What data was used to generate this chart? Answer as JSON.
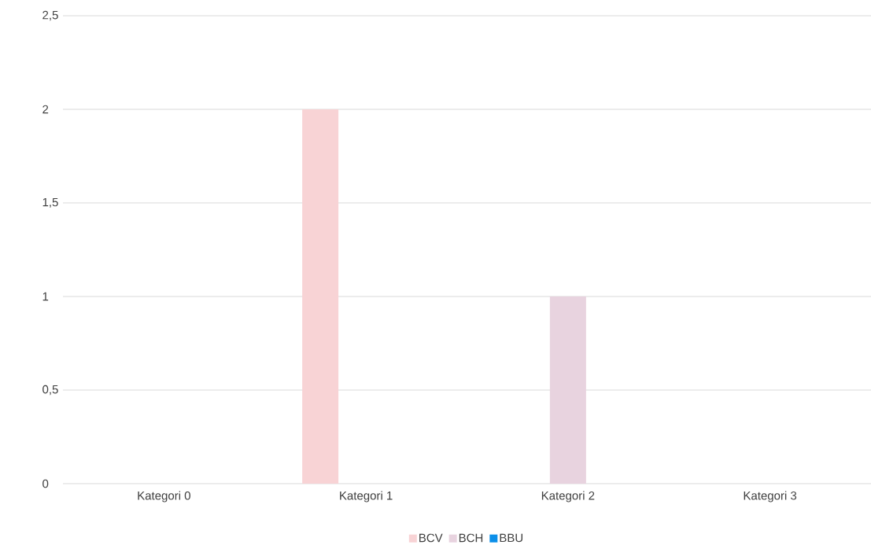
{
  "chart_data": {
    "type": "bar",
    "categories": [
      "Kategori 0",
      "Kategori 1",
      "Kategori 2",
      "Kategori 3"
    ],
    "series": [
      {
        "name": "BCV",
        "color": "#f8d3d5",
        "values": [
          0,
          2,
          0,
          0
        ]
      },
      {
        "name": "BCH",
        "color": "#e8d3df",
        "values": [
          0,
          0,
          1,
          0
        ]
      },
      {
        "name": "BBU",
        "color": "#0b8fe9",
        "values": [
          0,
          0,
          0,
          0
        ]
      }
    ],
    "ylim": [
      0,
      2.5
    ],
    "yticks": [
      0,
      {
        "value": 0.5,
        "label": "0,5"
      },
      1,
      {
        "value": 1.5,
        "label": "1,5"
      },
      2,
      {
        "value": 2.5,
        "label": "2,5"
      }
    ],
    "grid": "y",
    "legend": "bottom"
  }
}
